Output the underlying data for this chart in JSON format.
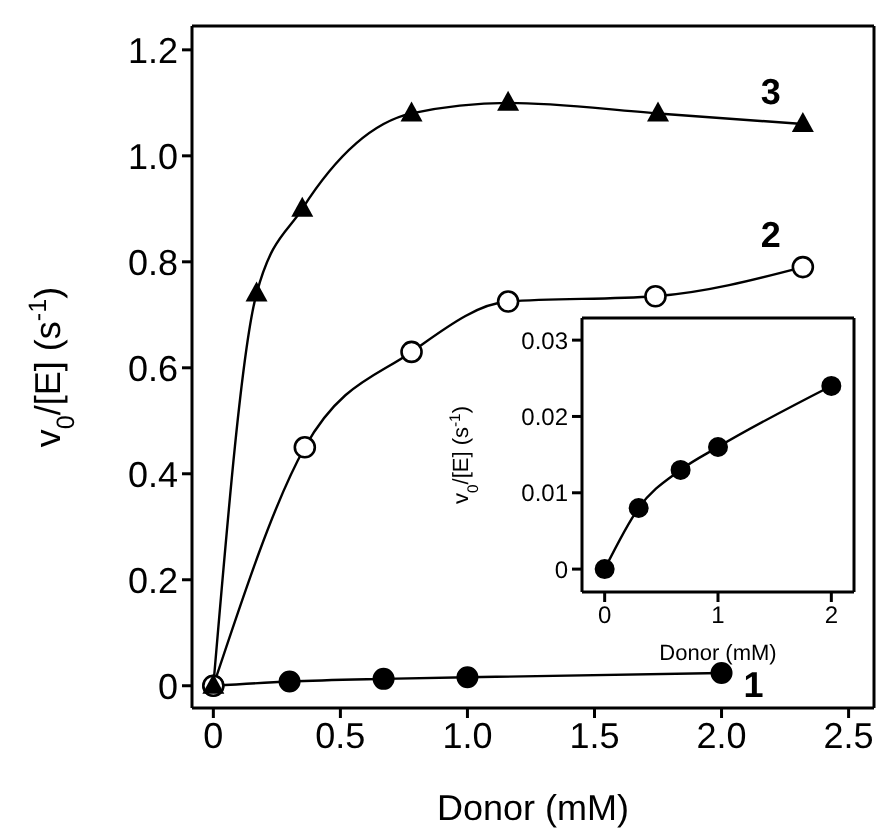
{
  "chart_data": [
    {
      "type": "line",
      "xlabel": "Donor (mM)",
      "ylabel": "v$_{0}$/[E] (s$^{-1}$)",
      "xlim": [
        -0.084,
        2.6
      ],
      "ylim": [
        -0.042,
        1.245
      ],
      "xticks": [
        {
          "value": 0,
          "label": "0"
        },
        {
          "value": 0.5,
          "label": "0.5"
        },
        {
          "value": 1,
          "label": "1.0"
        },
        {
          "value": 1.5,
          "label": "1.5"
        },
        {
          "value": 2,
          "label": "2.0"
        },
        {
          "value": 2.5,
          "label": "2.5"
        }
      ],
      "yticks": [
        {
          "value": 0,
          "label": "0"
        },
        {
          "value": 0.2,
          "label": "0.2"
        },
        {
          "value": 0.4,
          "label": "0.4"
        },
        {
          "value": 0.6,
          "label": "0.6"
        },
        {
          "value": 0.8,
          "label": "0.8"
        },
        {
          "value": 1,
          "label": "1.0"
        },
        {
          "value": 1.2,
          "label": "1.2"
        }
      ],
      "grid": false,
      "legend": false,
      "line_style": "solid",
      "series": [
        {
          "name": "1",
          "color": "#000000",
          "marker": "circle",
          "x": [
            0,
            0.3,
            0.67,
            1.0,
            2.0
          ],
          "values": [
            0,
            0.008,
            0.013,
            0.016,
            0.024
          ]
        },
        {
          "name": "2",
          "color": "#000000",
          "marker": "circle_open",
          "x": [
            0,
            0.36,
            0.78,
            1.16,
            1.74,
            2.32
          ],
          "values": [
            0,
            0.45,
            0.63,
            0.725,
            0.735,
            0.79
          ]
        },
        {
          "name": "3",
          "color": "#000000",
          "marker": "triangle",
          "x": [
            0,
            0.17,
            0.35,
            0.78,
            1.16,
            1.75,
            2.32
          ],
          "values": [
            0,
            0.74,
            0.9,
            1.08,
            1.1,
            1.08,
            1.06
          ]
        }
      ]
    },
    {
      "type": "line",
      "xlabel": "Donor (mM)",
      "ylabel": "v$_{0}$/[E] (s$^{-1}$)",
      "xlim": [
        -0.2,
        2.2
      ],
      "ylim": [
        -0.003,
        0.0329
      ],
      "xticks": [
        0,
        1,
        2
      ],
      "yticks": [
        0,
        0.01,
        0.02,
        0.03
      ],
      "grid": false,
      "legend": false,
      "line_style": "solid",
      "series": [
        {
          "color": "#000000",
          "marker": "circle",
          "x": [
            0,
            0.3,
            0.67,
            1.0,
            2.0
          ],
          "values": [
            0,
            0.008,
            0.013,
            0.016,
            0.024
          ]
        }
      ]
    }
  ]
}
